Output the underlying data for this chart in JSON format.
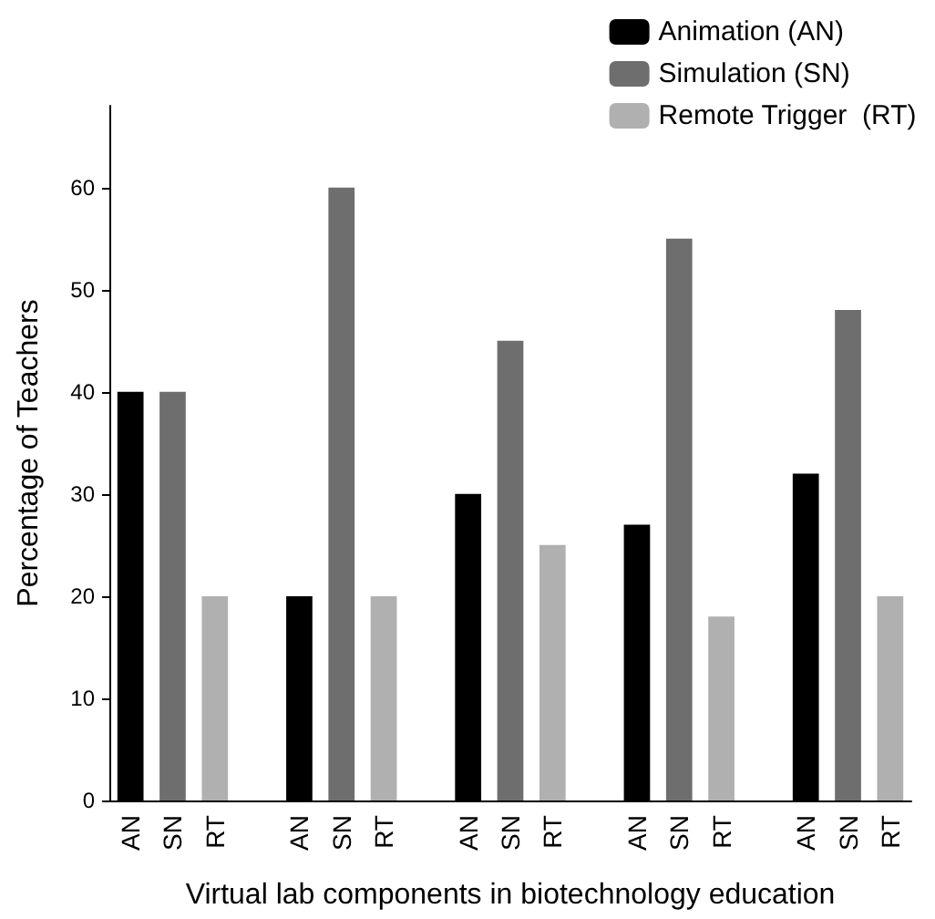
{
  "chart_data": {
    "type": "bar",
    "xlabel": "Virtual lab components in biotechnology education",
    "ylabel": "Percentage of Teachers",
    "categories": [
      "AN",
      "SN",
      "RT",
      null,
      "AN",
      "SN",
      "RT",
      null,
      "AN",
      "SN",
      "RT",
      null,
      "AN",
      "SN",
      "RT",
      null,
      "AN",
      "SN",
      "RT"
    ],
    "series": [
      {
        "name": "Animation (AN)",
        "color": "#000000",
        "values": [
          40,
          null,
          null,
          null,
          20,
          null,
          null,
          null,
          30,
          null,
          null,
          null,
          27,
          null,
          null,
          null,
          32,
          null,
          null
        ]
      },
      {
        "name": "Simulation (SN)",
        "color": "#6e6e6e",
        "values": [
          null,
          40,
          null,
          null,
          null,
          60,
          null,
          null,
          null,
          45,
          null,
          null,
          null,
          55,
          null,
          null,
          null,
          48,
          null
        ]
      },
      {
        "name": "Remote Trigger  (RT)",
        "color": "#b0b0b0",
        "values": [
          null,
          null,
          20,
          null,
          null,
          null,
          20,
          null,
          null,
          null,
          25,
          null,
          null,
          null,
          18,
          null,
          null,
          null,
          20
        ]
      }
    ],
    "ylim": [
      0,
      68
    ],
    "yticks": [
      0,
      10,
      20,
      30,
      40,
      50,
      60
    ],
    "grid": false,
    "legend": "top right"
  }
}
